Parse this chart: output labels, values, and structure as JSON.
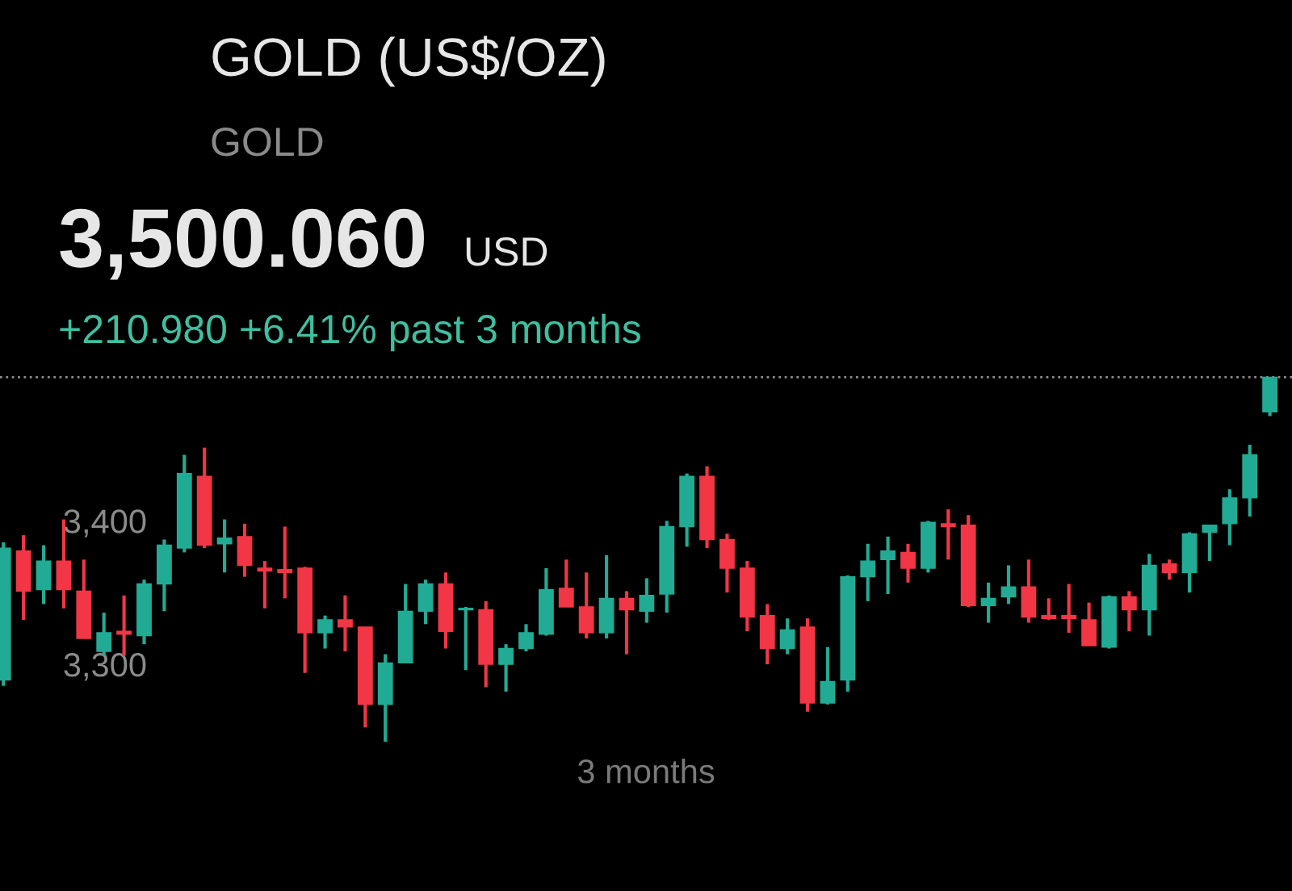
{
  "chart_data": {
    "type": "candlestick",
    "title": "GOLD (US$/OZ)",
    "subtitle": "GOLD",
    "xlabel": "3 months",
    "annotations": [
      "3,500.060",
      "USD",
      "+210.980 +6.41% past 3 months"
    ],
    "categories": [
      null,
      null,
      null,
      null,
      null,
      null,
      null,
      null,
      null,
      null,
      null,
      null,
      null,
      null,
      null,
      null,
      null,
      null,
      null,
      null,
      null,
      null,
      null,
      null,
      null,
      null,
      null,
      null,
      null,
      null,
      null,
      null,
      null,
      null,
      null,
      null,
      null,
      null,
      null,
      null,
      null,
      null,
      null,
      null,
      null,
      null,
      null,
      null,
      null,
      null,
      null,
      null,
      null,
      null,
      null,
      null,
      null,
      null,
      null,
      null,
      null,
      null,
      null,
      null
    ],
    "ohlc": [
      [
        3289,
        3385,
        3285,
        3381
      ],
      [
        3379,
        3390,
        3331,
        3351
      ],
      [
        3352,
        3383,
        3342,
        3372
      ],
      [
        3372,
        3401,
        3339,
        3352
      ],
      [
        3351,
        3373,
        3318,
        3318
      ],
      [
        3309,
        3336,
        3306,
        3322
      ],
      [
        3323,
        3348,
        3306,
        3321
      ],
      [
        3320,
        3359,
        3314,
        3356
      ],
      [
        3356,
        3387,
        3337,
        3383
      ],
      [
        3381,
        3446,
        3378,
        3433
      ],
      [
        3431,
        3451,
        3381,
        3383
      ],
      [
        3384,
        3401,
        3364,
        3388
      ],
      [
        3389,
        3398,
        3361,
        3369
      ],
      [
        3367,
        3372,
        3339,
        3365
      ],
      [
        3366,
        3396,
        3346,
        3364
      ],
      [
        3367,
        3368,
        3294,
        3322
      ],
      [
        3322,
        3334,
        3311,
        3331
      ],
      [
        3331,
        3348,
        3309,
        3326
      ],
      [
        3326,
        3326,
        3256,
        3272
      ],
      [
        3272,
        3307,
        3246,
        3301
      ],
      [
        3301,
        3356,
        3301,
        3337
      ],
      [
        3337,
        3359,
        3328,
        3356
      ],
      [
        3356,
        3364,
        3311,
        3323
      ],
      [
        3338,
        3340,
        3296,
        3339
      ],
      [
        3338,
        3344,
        3284,
        3300
      ],
      [
        3300,
        3314,
        3281,
        3311
      ],
      [
        3311,
        3328,
        3309,
        3322
      ],
      [
        3321,
        3367,
        3320,
        3352
      ],
      [
        3353,
        3373,
        3340,
        3340
      ],
      [
        3340,
        3364,
        3318,
        3322
      ],
      [
        3322,
        3376,
        3318,
        3346
      ],
      [
        3346,
        3351,
        3307,
        3338
      ],
      [
        3337,
        3360,
        3329,
        3348
      ],
      [
        3349,
        3400,
        3336,
        3396
      ],
      [
        3396,
        3433,
        3382,
        3431
      ],
      [
        3431,
        3438,
        3381,
        3387
      ],
      [
        3387,
        3391,
        3350,
        3367
      ],
      [
        3367,
        3372,
        3323,
        3333
      ],
      [
        3334,
        3342,
        3300,
        3311
      ],
      [
        3311,
        3332,
        3307,
        3324
      ],
      [
        3326,
        3332,
        3267,
        3273
      ],
      [
        3273,
        3312,
        3272,
        3288
      ],
      [
        3289,
        3362,
        3281,
        3361
      ],
      [
        3361,
        3384,
        3344,
        3372
      ],
      [
        3373,
        3389,
        3349,
        3379
      ],
      [
        3378,
        3384,
        3357,
        3367
      ],
      [
        3367,
        3400,
        3364,
        3399
      ],
      [
        3398,
        3408,
        3373,
        3396
      ],
      [
        3397,
        3404,
        3340,
        3341
      ],
      [
        3341,
        3357,
        3329,
        3346
      ],
      [
        3347,
        3369,
        3342,
        3354
      ],
      [
        3354,
        3373,
        3329,
        3333
      ],
      [
        3334,
        3346,
        3331,
        3332
      ],
      [
        3334,
        3356,
        3322,
        3332
      ],
      [
        3331,
        3343,
        3313,
        3313
      ],
      [
        3312,
        3348,
        3311,
        3347
      ],
      [
        3347,
        3351,
        3323,
        3338
      ],
      [
        3338,
        3377,
        3320,
        3369
      ],
      [
        3370,
        3373,
        3359,
        3364
      ],
      [
        3364,
        3392,
        3350,
        3391
      ],
      [
        3392,
        3397,
        3372,
        3397
      ],
      [
        3398,
        3422,
        3383,
        3416
      ],
      [
        3416,
        3453,
        3403,
        3446
      ],
      [
        3476,
        3500,
        3473,
        3500
      ]
    ],
    "colors": [
      "#22ab94",
      "#f23645",
      "#22ab94",
      "#f23645",
      "#f23645",
      "#22ab94",
      "#f23645",
      "#22ab94",
      "#22ab94",
      "#22ab94",
      "#f23645",
      "#22ab94",
      "#f23645",
      "#f23645",
      "#f23645",
      "#f23645",
      "#22ab94",
      "#f23645",
      "#f23645",
      "#22ab94",
      "#22ab94",
      "#22ab94",
      "#f23645",
      "#22ab94",
      "#f23645",
      "#22ab94",
      "#22ab94",
      "#22ab94",
      "#f23645",
      "#f23645",
      "#22ab94",
      "#f23645",
      "#22ab94",
      "#22ab94",
      "#22ab94",
      "#f23645",
      "#f23645",
      "#f23645",
      "#f23645",
      "#22ab94",
      "#f23645",
      "#22ab94",
      "#22ab94",
      "#22ab94",
      "#22ab94",
      "#f23645",
      "#22ab94",
      "#f23645",
      "#f23645",
      "#22ab94",
      "#22ab94",
      "#f23645",
      "#f23645",
      "#f23645",
      "#f23645",
      "#22ab94",
      "#f23645",
      "#22ab94",
      "#f23645",
      "#22ab94",
      "#22ab94",
      "#22ab94",
      "#22ab94",
      "#22ab94"
    ],
    "ylim": [
      3142,
      3763
    ],
    "yticks": [
      {
        "value": 3300,
        "label": "3,300"
      },
      {
        "value": 3400,
        "label": "3,400"
      }
    ],
    "ref_lines": [
      {
        "axis": "y",
        "value": 3500.06,
        "label": null,
        "color": "#8a8a8a",
        "line_style": "dotted"
      }
    ],
    "tick_labels": "y",
    "grid": false,
    "legend": false
  }
}
